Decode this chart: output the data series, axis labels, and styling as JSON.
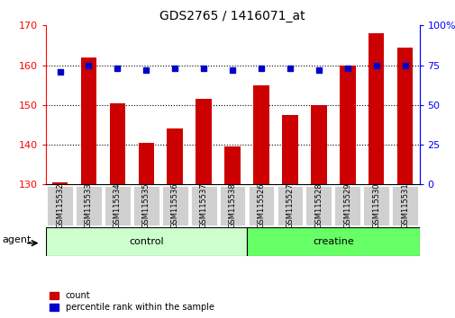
{
  "title": "GDS2765 / 1416071_at",
  "categories": [
    "GSM115532",
    "GSM115533",
    "GSM115534",
    "GSM115535",
    "GSM115536",
    "GSM115537",
    "GSM115538",
    "GSM115526",
    "GSM115527",
    "GSM115528",
    "GSM115529",
    "GSM115530",
    "GSM115531"
  ],
  "counts": [
    130.5,
    162,
    150.5,
    140.5,
    144,
    151.5,
    139.5,
    155,
    147.5,
    150,
    160,
    168,
    164.5
  ],
  "percentile_ranks": [
    71,
    75,
    73,
    72,
    73,
    73,
    72,
    73,
    73,
    72,
    73,
    75,
    75
  ],
  "ylim_left": [
    130,
    170
  ],
  "ylim_right": [
    0,
    100
  ],
  "yticks_left": [
    130,
    140,
    150,
    160,
    170
  ],
  "yticks_right": [
    0,
    25,
    50,
    75,
    100
  ],
  "bar_color": "#cc0000",
  "dot_color": "#0000cc",
  "control_label": "control",
  "creatine_label": "creatine",
  "agent_label": "agent",
  "legend_count": "count",
  "legend_percentile": "percentile rank within the sample",
  "control_color": "#ccffcc",
  "creatine_color": "#66ff66",
  "bar_bottom": 130,
  "n_control": 7,
  "n_creatine": 6,
  "grid_yticks": [
    140,
    150,
    160
  ]
}
